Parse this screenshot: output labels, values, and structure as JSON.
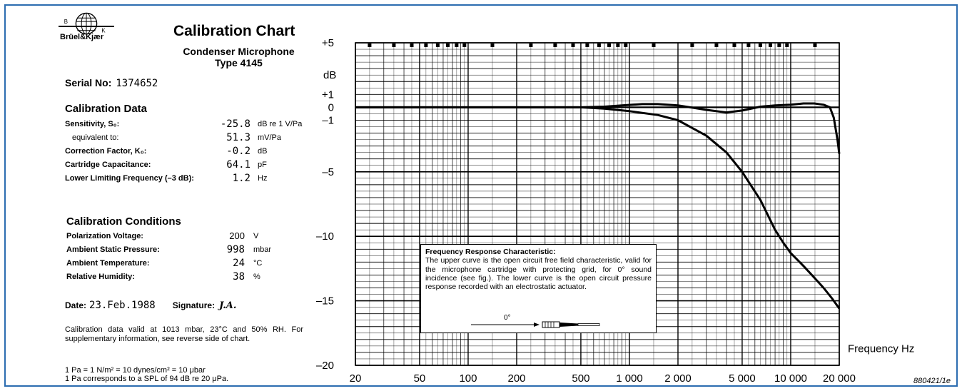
{
  "header": {
    "brand": "Brüel&Kjær",
    "logo_letters": [
      "B",
      "K"
    ],
    "title": "Calibration Chart",
    "subtitle_line1": "Condenser Microphone",
    "subtitle_line2": "Type 4145"
  },
  "serial": {
    "label": "Serial No:",
    "value": "1374652"
  },
  "calibration_data": {
    "heading": "Calibration Data",
    "rows": [
      {
        "label": "Sensitivity, S₀:",
        "value": "-25.8",
        "unit": "dB re 1 V/Pa"
      },
      {
        "label": "equivalent to:",
        "value": "51.3",
        "unit": "mV/Pa"
      },
      {
        "label": "Correction Factor, K₀:",
        "value": "-0.2",
        "unit": "dB"
      },
      {
        "label": "Cartridge Capacitance:",
        "value": "64.1",
        "unit": "pF"
      },
      {
        "label": "Lower Limiting Frequency (–3 dB):",
        "value": "1.2",
        "unit": "Hz"
      }
    ]
  },
  "calibration_conditions": {
    "heading": "Calibration Conditions",
    "rows": [
      {
        "label": "Polarization Voltage:",
        "value": "200",
        "unit": "V"
      },
      {
        "label": "Ambient Static Pressure:",
        "value": "998",
        "unit": "mbar"
      },
      {
        "label": "Ambient Temperature:",
        "value": "24",
        "unit": "°C"
      },
      {
        "label": "Relative Humidity:",
        "value": "38",
        "unit": "%"
      }
    ]
  },
  "date": {
    "label": "Date:",
    "value": "23.Feb.1988",
    "signature_label": "Signature:",
    "signature": "J.A."
  },
  "note": "Calibration data valid at 1013 mbar, 23°C and 50% RH. For supplementary information, see reverse side of chart.",
  "units_note_line1": "1 Pa = 1 N/m² = 10 dynes/cm² = 10 μbar",
  "units_note_line2": "1 Pa corresponds to a SPL of 94 dB re 20 μPa.",
  "figure_id": "880421/1e",
  "legend": {
    "heading": "Frequency Response Characteristic:",
    "text": "The upper curve is the open circuit free field characteristic, valid for the microphone cartridge with protecting grid, for 0° sound incidence (see fig.). The lower curve is the open circuit pressure response recorded with an electrostatic actuator.",
    "angle_label": "0°"
  },
  "chart_data": {
    "type": "line",
    "xscale": "log",
    "xlim": [
      20,
      20000
    ],
    "ylim": [
      -20,
      5
    ],
    "xlabel": "Frequency Hz",
    "ylabel": "dB",
    "x_tick_labels": [
      {
        "x": 20,
        "label": "20"
      },
      {
        "x": 50,
        "label": "50"
      },
      {
        "x": 100,
        "label": "100"
      },
      {
        "x": 200,
        "label": "200"
      },
      {
        "x": 500,
        "label": "500"
      },
      {
        "x": 1000,
        "label": "1 000"
      },
      {
        "x": 2000,
        "label": "2 000"
      },
      {
        "x": 5000,
        "label": "5 000"
      },
      {
        "x": 10000,
        "label": "10 000"
      },
      {
        "x": 20000,
        "label": "20 000"
      }
    ],
    "y_tick_labels": [
      {
        "y": 5,
        "label": "+5"
      },
      {
        "y": 1,
        "label": "+1"
      },
      {
        "y": 0,
        "label": "0"
      },
      {
        "y": -1,
        "label": "–1"
      },
      {
        "y": -5,
        "label": "–5"
      },
      {
        "y": -10,
        "label": "–10"
      },
      {
        "y": -15,
        "label": "–15"
      },
      {
        "y": -20,
        "label": "–20"
      }
    ],
    "grid": true,
    "series": [
      {
        "x": [
          20,
          100,
          500,
          700,
          900,
          1200,
          1500,
          2000,
          3000,
          4000,
          5000,
          6500,
          8000,
          10000,
          12000,
          14000,
          16000,
          17500,
          18500,
          19500,
          20000
        ],
        "y": [
          0,
          0,
          0,
          0.05,
          0.15,
          0.25,
          0.25,
          0.15,
          -0.2,
          -0.4,
          -0.25,
          0.05,
          0.15,
          0.2,
          0.3,
          0.3,
          0.2,
          0,
          -0.8,
          -2.5,
          -3.6
        ]
      },
      {
        "x": [
          20,
          100,
          500,
          700,
          1000,
          1500,
          2000,
          3000,
          4000,
          5000,
          6500,
          8000,
          9000,
          10000,
          12000,
          14000,
          16000,
          18000,
          20000
        ],
        "y": [
          0,
          0,
          0,
          -0.1,
          -0.3,
          -0.6,
          -1.0,
          -2.2,
          -3.5,
          -5.0,
          -7.2,
          -9.5,
          -10.5,
          -11.3,
          -12.3,
          -13.2,
          -14.0,
          -14.8,
          -15.6
        ]
      }
    ]
  }
}
